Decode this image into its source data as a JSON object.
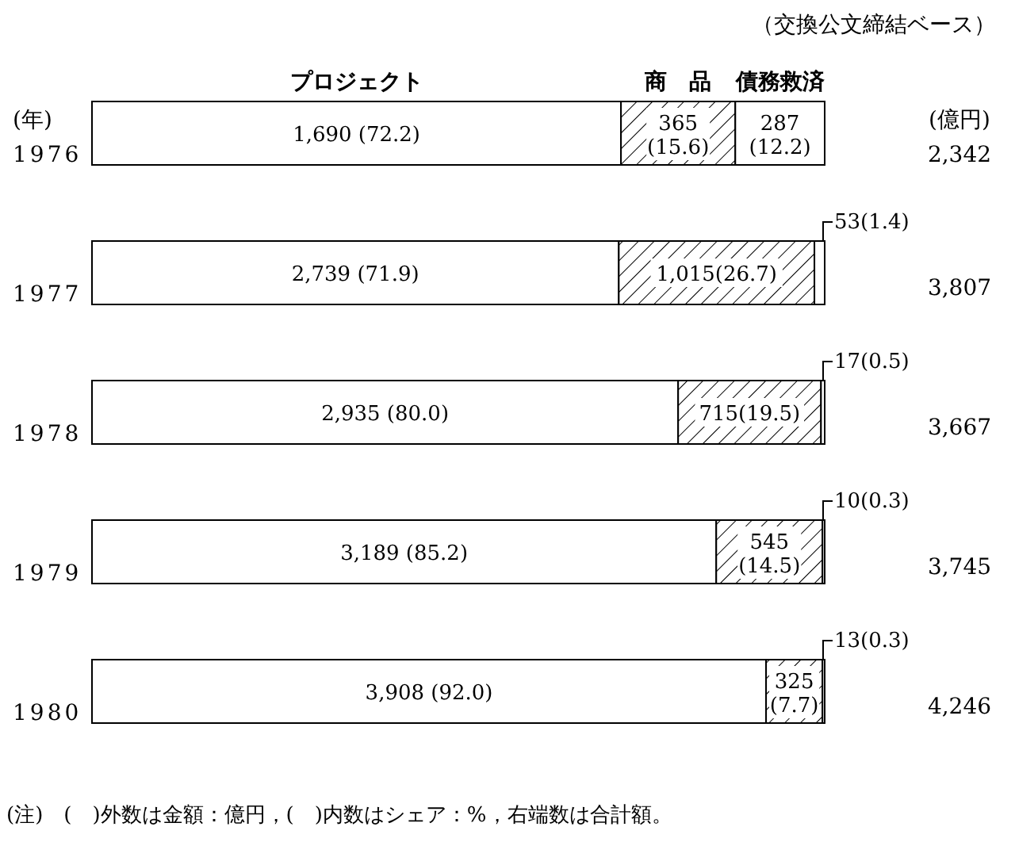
{
  "chart_data": {
    "type": "bar",
    "orientation": "horizontal",
    "stacked": true,
    "categories": [
      "1976",
      "1977",
      "1978",
      "1979",
      "1980"
    ],
    "series": [
      {
        "name": "プロジェクト",
        "color": "#ffffff",
        "values": [
          72.2,
          71.9,
          80.0,
          85.2,
          92.0
        ],
        "value_labels": [
          "1,690 (72.2)",
          "2,739 (71.9)",
          "2,935 (80.0)",
          "3,189 (85.2)",
          "3,908 (92.0)"
        ]
      },
      {
        "name": "商　品",
        "color": "#000000",
        "values": [
          15.6,
          26.7,
          19.5,
          14.5,
          7.7
        ],
        "value_labels": [
          "365 (15.6)",
          "1,015(26.7)",
          "715(19.5)",
          "545 (14.5)",
          "325 (7.7)"
        ]
      },
      {
        "name": "債務救済",
        "color": "#ffffff",
        "values": [
          12.2,
          1.4,
          0.5,
          0.3,
          0.3
        ],
        "value_labels": [
          "287 (12.2)",
          "53(1.4)",
          "17(0.5)",
          "10(0.3)",
          "13(0.3)"
        ]
      }
    ],
    "annotations": [
      "（交換公文締結ベース）",
      "(年)",
      "(億円)",
      "(注)　(　)外数は金額：億円，(　)内数はシェア：%，右端数は合計額。",
      "2,342",
      "3,807",
      "3,667",
      "3,745",
      "4,246"
    ]
  }
}
